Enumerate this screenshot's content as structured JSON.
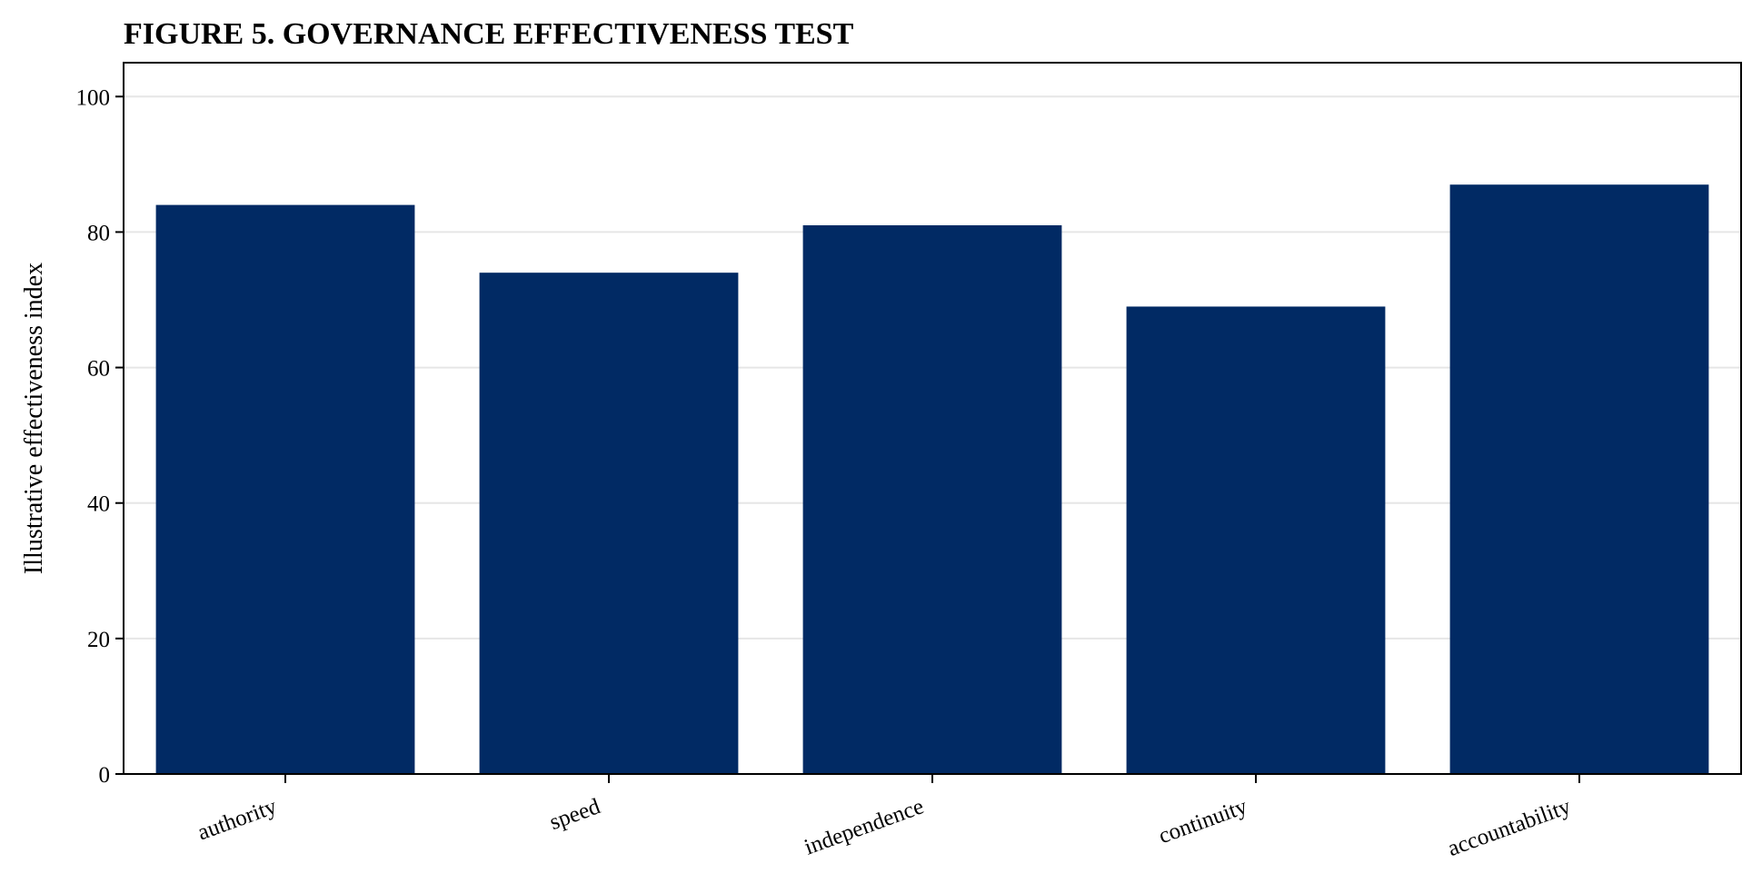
{
  "chart_data": {
    "type": "bar",
    "title": "FIGURE 5. GOVERNANCE EFFECTIVENESS TEST",
    "xlabel": "",
    "ylabel": "Illustrative effectiveness index",
    "categories": [
      "authority",
      "speed",
      "independence",
      "continuity",
      "accountability"
    ],
    "values": [
      84,
      74,
      81,
      69,
      87
    ],
    "ylim": [
      0,
      105
    ],
    "yticks": [
      0,
      20,
      40,
      60,
      80,
      100
    ],
    "grid": "y",
    "legend": "none",
    "bar_color": "#012a64",
    "grid_color": "#e6e6e6"
  }
}
